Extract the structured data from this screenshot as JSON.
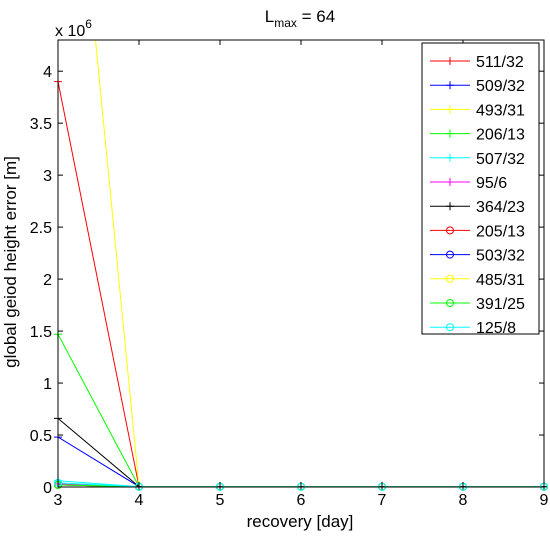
{
  "chart_data": {
    "type": "line",
    "title_main": "L",
    "title_sub": "max",
    "title_rest": " = 64",
    "xlabel": "recovery [day]",
    "ylabel": "global geiod height error [m]",
    "y_multiplier_base": "x 10",
    "y_multiplier_exp": "6",
    "xlim": [
      3,
      9
    ],
    "ylim": [
      0,
      4.3
    ],
    "xticks": [
      3,
      4,
      5,
      6,
      7,
      8,
      9
    ],
    "xtick_labels": [
      "3",
      "4",
      "5",
      "6",
      "7",
      "8",
      "9"
    ],
    "yticks": [
      0,
      0.5,
      1,
      1.5,
      2,
      2.5,
      3,
      3.5,
      4
    ],
    "ytick_labels": [
      "0",
      "0.5",
      "1",
      "1.5",
      "2",
      "2.5",
      "3",
      "3.5",
      "4"
    ],
    "grid": false,
    "legend_position": "top-right",
    "x": [
      3,
      4,
      5,
      6,
      7,
      8,
      9
    ],
    "series": [
      {
        "name": "511/32",
        "color": "#ff0000",
        "marker": "plus",
        "values": [
          3.9,
          0.005,
          0.003,
          0.003,
          0.003,
          0.003,
          0.003
        ]
      },
      {
        "name": "509/32",
        "color": "#0000ff",
        "marker": "plus",
        "values": [
          0.48,
          0.004,
          0.003,
          0.003,
          0.003,
          0.003,
          0.003
        ]
      },
      {
        "name": "493/31",
        "color": "#ffff00",
        "marker": "plus",
        "values": [
          8.0,
          0.005,
          0.003,
          0.003,
          0.003,
          0.003,
          0.003
        ]
      },
      {
        "name": "206/13",
        "color": "#00ff00",
        "marker": "plus",
        "values": [
          1.47,
          0.004,
          0.003,
          0.003,
          0.003,
          0.003,
          0.003
        ]
      },
      {
        "name": "507/32",
        "color": "#00ffff",
        "marker": "plus",
        "values": [
          0.06,
          0.003,
          0.003,
          0.003,
          0.003,
          0.003,
          0.003
        ]
      },
      {
        "name": "95/6",
        "color": "#ff00ff",
        "marker": "plus",
        "values": [
          0.03,
          0.003,
          0.003,
          0.003,
          0.003,
          0.003,
          0.003
        ]
      },
      {
        "name": "364/23",
        "color": "#000000",
        "marker": "plus",
        "values": [
          0.66,
          0.004,
          0.003,
          0.003,
          0.003,
          0.003,
          0.003
        ]
      },
      {
        "name": "205/13",
        "color": "#ff0000",
        "marker": "circle",
        "values": [
          0.02,
          0.003,
          0.003,
          0.003,
          0.003,
          0.003,
          0.003
        ]
      },
      {
        "name": "503/32",
        "color": "#0000ff",
        "marker": "circle",
        "values": [
          0.02,
          0.003,
          0.003,
          0.003,
          0.003,
          0.003,
          0.003
        ]
      },
      {
        "name": "485/31",
        "color": "#ffff00",
        "marker": "circle",
        "values": [
          0.02,
          0.003,
          0.003,
          0.003,
          0.003,
          0.003,
          0.003
        ]
      },
      {
        "name": "391/25",
        "color": "#00ff00",
        "marker": "circle",
        "values": [
          0.02,
          0.003,
          0.003,
          0.003,
          0.003,
          0.003,
          0.003
        ]
      },
      {
        "name": "125/8",
        "color": "#00ffff",
        "marker": "circle",
        "values": [
          0.04,
          0.003,
          0.003,
          0.003,
          0.003,
          0.003,
          0.003
        ]
      }
    ]
  }
}
